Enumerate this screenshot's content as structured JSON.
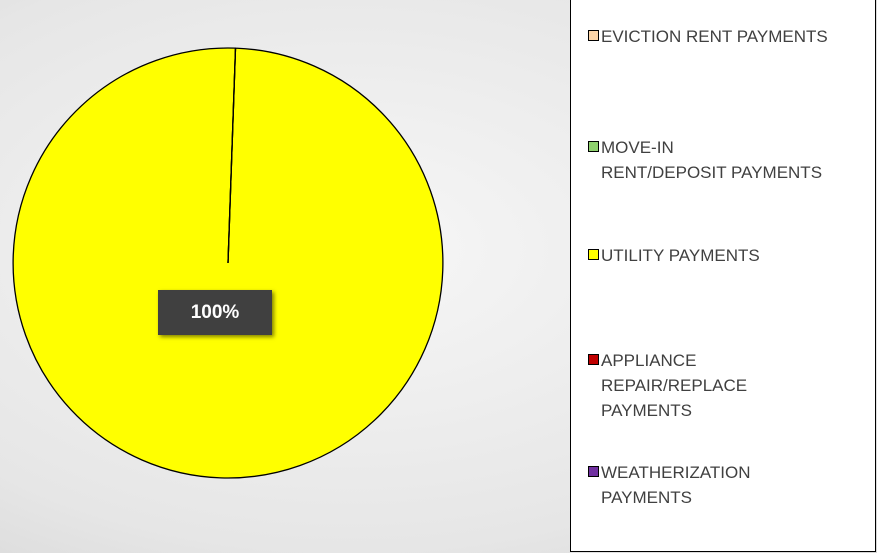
{
  "chart_data": {
    "type": "pie",
    "categories": [
      "EVICTION RENT PAYMENTS",
      "MOVE-IN\nRENT/DEPOSIT PAYMENTS",
      "UTILITY PAYMENTS",
      "APPLIANCE\nREPAIR/REPLACE\nPAYMENTS",
      "WEATHERIZATION\nPAYMENTS"
    ],
    "values": [
      0,
      0,
      100,
      0,
      0
    ],
    "value_labels": [
      null,
      null,
      "100%",
      null,
      null
    ],
    "colors": [
      "#fcd5a8",
      "#8fd16e",
      "#ffff00",
      "#c00000",
      "#7030a0"
    ],
    "legend": "right"
  }
}
